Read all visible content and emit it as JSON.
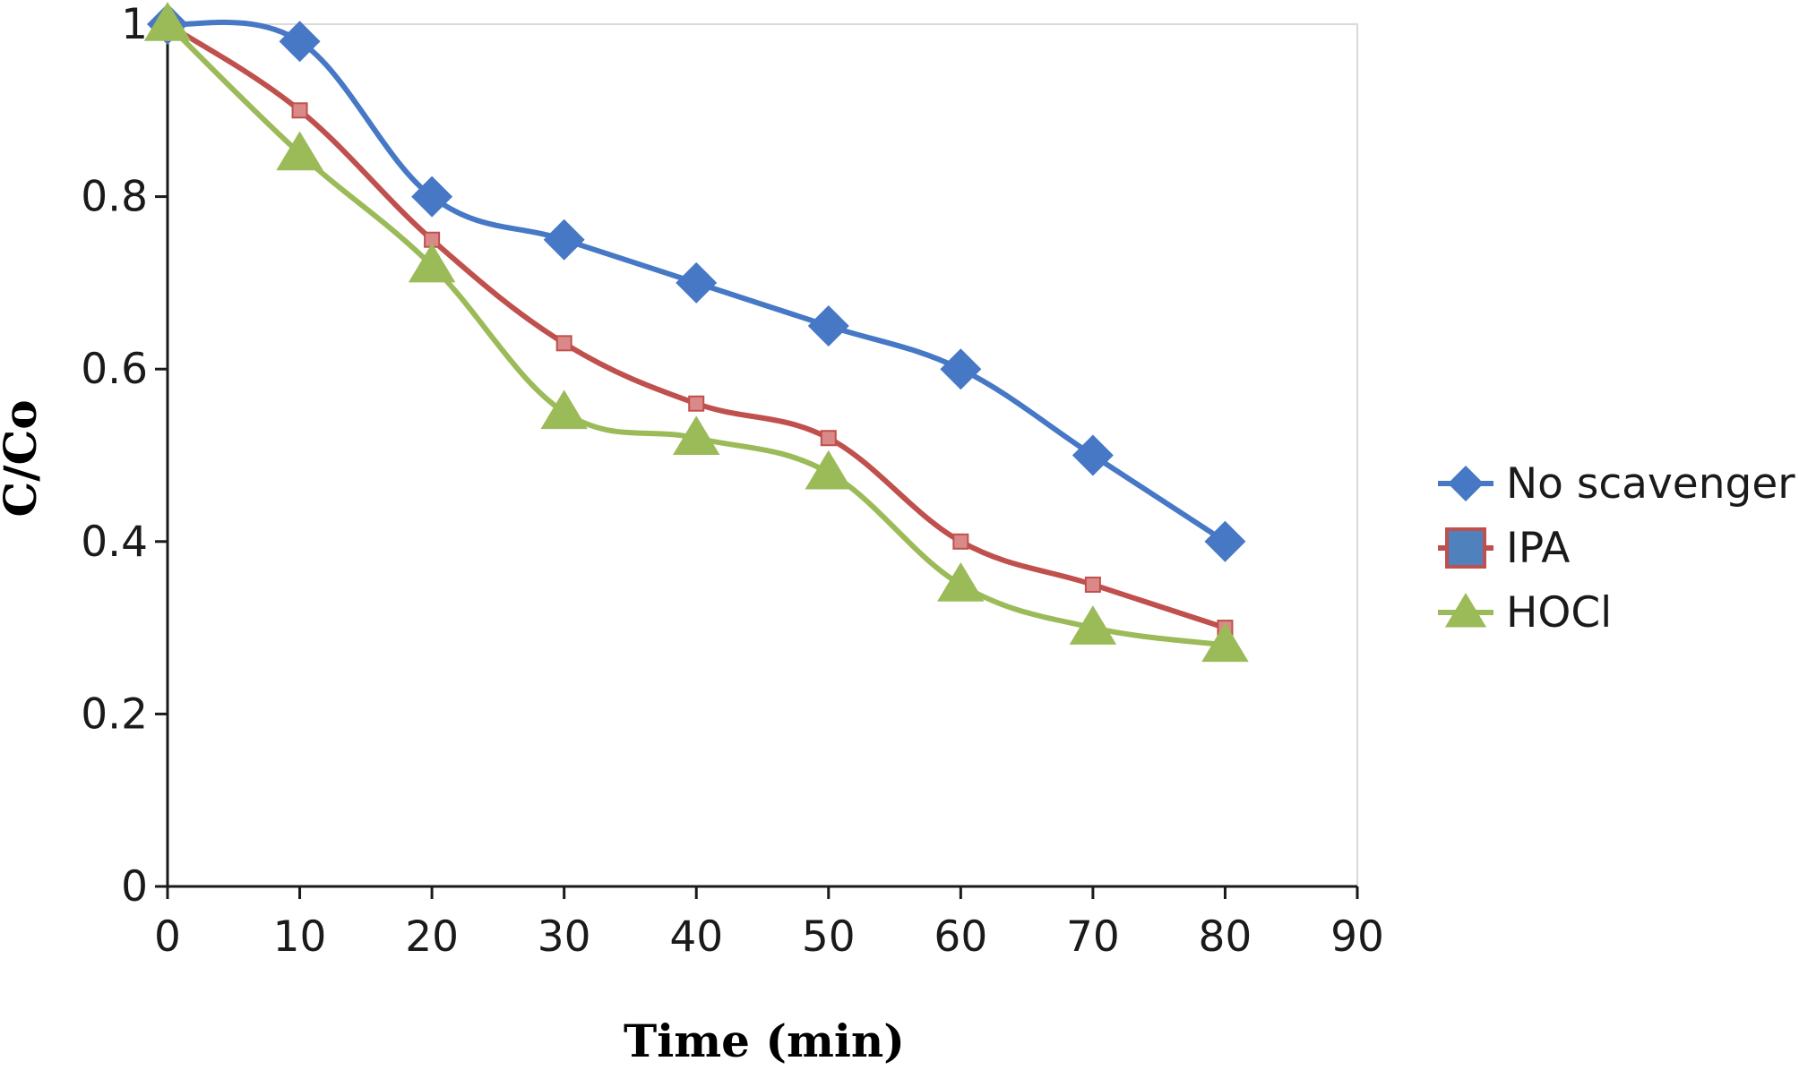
{
  "chart_data": {
    "type": "line",
    "xlabel": "Time (min)",
    "ylabel": "C/Co",
    "xlim": [
      0,
      90
    ],
    "ylim": [
      0,
      1
    ],
    "xticks": [
      "0",
      "10",
      "20",
      "30",
      "40",
      "50",
      "60",
      "70",
      "80",
      "90"
    ],
    "yticks": [
      "0",
      "0.2",
      "0.4",
      "0.6",
      "0.8",
      "1"
    ],
    "grid": false,
    "smooth": true,
    "legend": "right",
    "x": [
      0,
      10,
      20,
      30,
      40,
      50,
      60,
      70,
      80
    ],
    "series": [
      {
        "name": "No scavenger",
        "marker": "diamond",
        "color": "#4678C6",
        "values": [
          1.0,
          0.98,
          0.8,
          0.75,
          0.7,
          0.65,
          0.6,
          0.5,
          0.4
        ]
      },
      {
        "name": "IPA",
        "marker": "square",
        "color": "#C0504D",
        "marker_fill": "#4F81BD",
        "values": [
          1.0,
          0.9,
          0.75,
          0.63,
          0.56,
          0.52,
          0.4,
          0.35,
          0.3
        ]
      },
      {
        "name": "HOCl",
        "marker": "triangle",
        "color": "#9BBB59",
        "values": [
          1.0,
          0.85,
          0.72,
          0.55,
          0.52,
          0.48,
          0.35,
          0.3,
          0.28
        ]
      }
    ]
  }
}
